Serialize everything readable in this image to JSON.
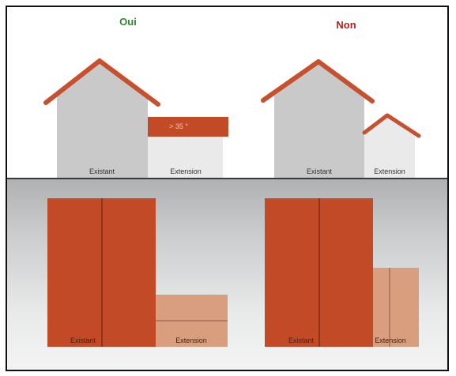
{
  "verdicts": {
    "yes": "Oui",
    "no": "Non"
  },
  "elevation_labels": {
    "left_existing": "Existant",
    "left_extension": "Extension",
    "right_existing": "Existant",
    "right_extension": "Extension"
  },
  "angle_label": "> 35 °",
  "plan_labels": {
    "left_existing": "Existant",
    "left_extension": "Extension",
    "right_existing": "Existant",
    "right_extension": "Extension"
  },
  "colors": {
    "roof": "#c7502e",
    "existing_wall": "#c9c9ca",
    "extension_wall": "#eaeaea",
    "plan_existing": "#c24a26",
    "plan_extension": "#d99e7e",
    "ok": "#2a8a2a",
    "not_ok": "#b81c1c"
  }
}
